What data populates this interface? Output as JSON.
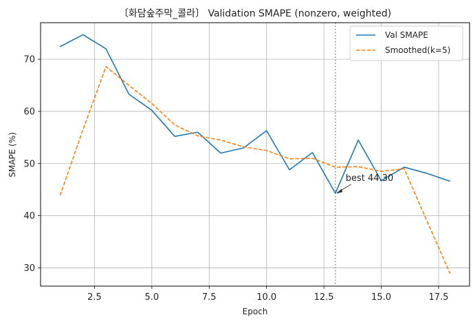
{
  "chart_data": {
    "type": "line",
    "title": "〔화담숲주막_콜라〕 Validation SMAPE (nonzero, weighted)",
    "xlabel": "Epoch",
    "ylabel": "SMAPE (%)",
    "xlim": [
      0.15,
      18.85
    ],
    "ylim": [
      26.5,
      77.0
    ],
    "x_ticks": [
      2.5,
      5.0,
      7.5,
      10.0,
      12.5,
      15.0,
      17.5
    ],
    "x_tick_labels": [
      "2.5",
      "5.0",
      "7.5",
      "10.0",
      "12.5",
      "15.0",
      "17.5"
    ],
    "y_ticks": [
      30,
      40,
      50,
      60,
      70
    ],
    "y_tick_labels": [
      "30",
      "40",
      "50",
      "60",
      "70"
    ],
    "grid": true,
    "legend_position": "top-right",
    "x": [
      1,
      2,
      3,
      4,
      5,
      6,
      7,
      8,
      9,
      10,
      11,
      12,
      13,
      14,
      15,
      16,
      17,
      18
    ],
    "series": [
      {
        "name": "Val SMAPE",
        "style": "solid",
        "color": "#1f77b4",
        "values": [
          72.4,
          74.7,
          72.0,
          63.3,
          60.2,
          55.2,
          56.0,
          52.0,
          53.0,
          56.3,
          48.8,
          52.1,
          44.3,
          54.5,
          46.7,
          49.3,
          48.1,
          46.6
        ]
      },
      {
        "name": "Smoothed(k=5)",
        "style": "dashed",
        "color": "#ff7f0e",
        "values": [
          43.9,
          56.5,
          68.6,
          65.0,
          61.5,
          57.4,
          55.3,
          54.5,
          53.2,
          52.5,
          50.9,
          51.0,
          49.3,
          49.4,
          48.5,
          49.0,
          38.9,
          28.9
        ]
      }
    ],
    "vline": {
      "x": 13,
      "color": "#808080",
      "style": "dotted"
    },
    "annotation": {
      "text": "best 44.30",
      "x": 13,
      "y": 44.3
    }
  }
}
